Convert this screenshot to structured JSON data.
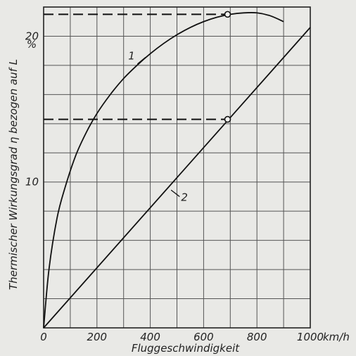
{
  "chart_data": {
    "type": "line",
    "title": "",
    "xlabel": "Fluggeschwindigkeit",
    "ylabel": "Thermischer  Wirkungsgrad η bezogen auf L",
    "x_unit": "km/h",
    "y_unit": "%",
    "xlim": [
      0,
      1000
    ],
    "ylim": [
      0,
      22
    ],
    "grid": true,
    "x_ticks": [
      {
        "value": 0,
        "label": "0"
      },
      {
        "value": 200,
        "label": "200"
      },
      {
        "value": 400,
        "label": "400"
      },
      {
        "value": 600,
        "label": "600"
      },
      {
        "value": 800,
        "label": "800"
      },
      {
        "value": 1000,
        "label": "1000"
      }
    ],
    "y_ticks": [
      {
        "value": 10,
        "label": "10"
      },
      {
        "value": 20,
        "label": "20"
      }
    ],
    "series": [
      {
        "name": "1",
        "x": [
          0,
          20,
          50,
          80,
          120,
          160,
          200,
          250,
          300,
          350,
          400,
          450,
          500,
          550,
          600,
          650,
          700,
          750,
          800,
          850,
          900
        ],
        "y": [
          0,
          4.0,
          7.5,
          9.6,
          11.8,
          13.4,
          14.7,
          16.0,
          17.1,
          18.0,
          18.8,
          19.5,
          20.1,
          20.6,
          21.0,
          21.3,
          21.5,
          21.6,
          21.6,
          21.4,
          21.0
        ]
      },
      {
        "name": "2",
        "x": [
          0,
          1000
        ],
        "y": [
          0,
          20.6
        ]
      }
    ],
    "reference_lines": [
      {
        "x_from": 0,
        "x_to": 690,
        "y": 21.5
      },
      {
        "x_from": 0,
        "x_to": 690,
        "y": 14.3
      }
    ],
    "markers": [
      {
        "x": 690,
        "y": 21.5
      },
      {
        "x": 690,
        "y": 14.3
      }
    ]
  }
}
